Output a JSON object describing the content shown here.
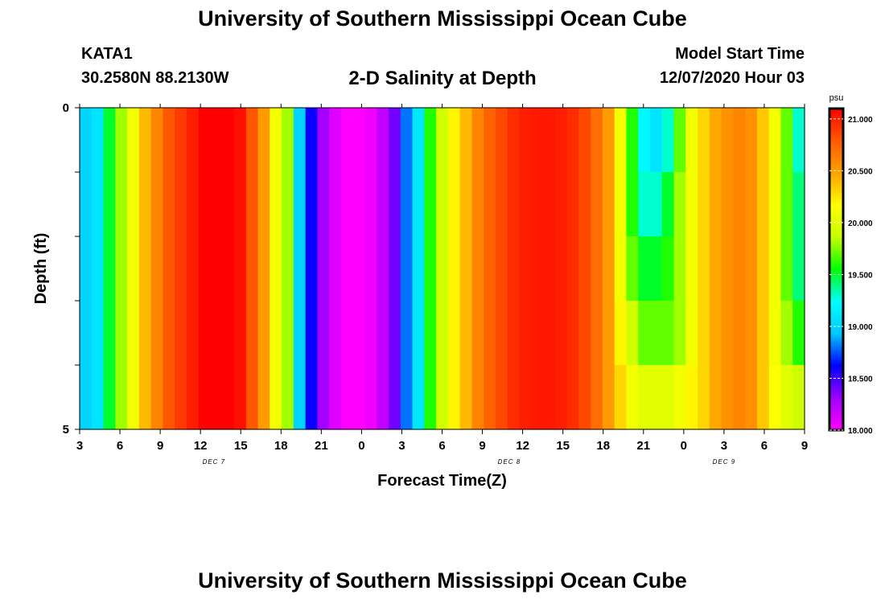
{
  "header": {
    "title": "University of Southern Mississippi Ocean Cube",
    "station_id": "KATA1",
    "coordinates": "30.2580N 88.2130W",
    "plot_title": "2-D Salinity at Depth",
    "start_label": "Model Start Time",
    "start_value": "12/07/2020 Hour 03"
  },
  "footer": {
    "title": "University of Southern Mississippi Ocean Cube"
  },
  "chart_data": {
    "type": "heatmap",
    "xlabel": "Forecast Time(Z)",
    "ylabel": "Depth (ft)",
    "x_tick_labels": [
      "3",
      "6",
      "9",
      "12",
      "15",
      "18",
      "21",
      "0",
      "3",
      "6",
      "9",
      "12",
      "15",
      "18",
      "21",
      "0",
      "3",
      "6",
      "9"
    ],
    "y_tick_labels": [
      "0",
      "5"
    ],
    "ylim": [
      0,
      5
    ],
    "date_labels": [
      {
        "text": "DEC 7",
        "hour_index": 10
      },
      {
        "text": "DEC 8",
        "hour_index": 32
      },
      {
        "text": "DEC 9",
        "hour_index": 48
      }
    ],
    "x_hours_per_tick": 3,
    "depth_rows": 5,
    "colorbar": {
      "unit": "psu",
      "min": 18.0,
      "max": 21.1,
      "tick_labels": [
        "18.000",
        "18.500",
        "19.000",
        "19.500",
        "20.000",
        "20.500",
        "21.000"
      ],
      "colors": [
        "#ff00ff",
        "#a000ff",
        "#0000ff",
        "#00c8ff",
        "#00ffff",
        "#00ff00",
        "#c8ff00",
        "#ffff00",
        "#ffa000",
        "#ff5a00",
        "#ff0000"
      ]
    },
    "salinity_psu": [
      [
        19.0,
        19.1,
        19.5,
        19.8,
        20.1,
        20.4,
        20.6,
        20.8,
        20.9,
        21.0,
        21.1,
        21.2,
        21.15,
        21.05,
        20.8,
        20.5,
        20.1,
        19.8,
        19.0,
        18.6,
        18.3,
        18.1,
        18.0,
        18.0,
        18.05,
        18.2,
        18.4,
        18.8,
        19.1,
        19.6,
        19.9,
        20.2,
        20.4,
        20.6,
        20.75,
        20.85,
        20.95,
        21.0,
        21.02,
        21.02,
        21.0,
        20.95,
        20.85,
        20.7,
        20.5,
        20.1,
        19.6,
        19.2,
        19.1,
        19.3,
        19.7,
        20.1,
        20.3,
        20.45,
        20.55,
        20.6,
        20.55,
        20.35,
        20.1,
        19.7,
        19.3
      ],
      [
        19.0,
        19.1,
        19.5,
        19.8,
        20.1,
        20.4,
        20.6,
        20.8,
        20.9,
        21.0,
        21.1,
        21.2,
        21.15,
        21.05,
        20.8,
        20.5,
        20.1,
        19.8,
        19.0,
        18.6,
        18.3,
        18.1,
        18.0,
        18.0,
        18.05,
        18.2,
        18.4,
        18.8,
        19.1,
        19.6,
        19.9,
        20.2,
        20.4,
        20.6,
        20.75,
        20.85,
        20.95,
        21.0,
        21.02,
        21.02,
        21.0,
        20.95,
        20.85,
        20.7,
        20.5,
        20.1,
        19.6,
        19.3,
        19.3,
        19.5,
        19.8,
        20.1,
        20.3,
        20.45,
        20.55,
        20.6,
        20.55,
        20.35,
        20.1,
        19.7,
        19.4
      ],
      [
        19.0,
        19.1,
        19.5,
        19.8,
        20.1,
        20.4,
        20.6,
        20.8,
        20.9,
        21.0,
        21.1,
        21.2,
        21.15,
        21.05,
        20.8,
        20.5,
        20.1,
        19.8,
        19.0,
        18.6,
        18.3,
        18.1,
        18.0,
        18.0,
        18.05,
        18.2,
        18.4,
        18.8,
        19.1,
        19.6,
        19.9,
        20.2,
        20.4,
        20.6,
        20.75,
        20.85,
        20.95,
        21.0,
        21.02,
        21.02,
        21.0,
        20.95,
        20.85,
        20.7,
        20.5,
        20.1,
        19.7,
        19.5,
        19.5,
        19.6,
        19.8,
        20.1,
        20.3,
        20.45,
        20.55,
        20.6,
        20.55,
        20.35,
        20.1,
        19.7,
        19.4
      ],
      [
        19.0,
        19.1,
        19.5,
        19.8,
        20.1,
        20.4,
        20.6,
        20.8,
        20.9,
        21.0,
        21.1,
        21.2,
        21.15,
        21.05,
        20.8,
        20.5,
        20.1,
        19.8,
        19.0,
        18.6,
        18.3,
        18.1,
        18.0,
        18.0,
        18.05,
        18.2,
        18.4,
        18.8,
        19.1,
        19.6,
        19.9,
        20.2,
        20.4,
        20.6,
        20.75,
        20.85,
        20.95,
        21.0,
        21.02,
        21.02,
        21.0,
        20.95,
        20.85,
        20.7,
        20.5,
        20.2,
        19.9,
        19.7,
        19.7,
        19.7,
        19.8,
        20.1,
        20.3,
        20.45,
        20.55,
        20.6,
        20.55,
        20.35,
        20.1,
        19.8,
        19.6
      ],
      [
        19.0,
        19.1,
        19.5,
        19.8,
        20.1,
        20.4,
        20.6,
        20.8,
        20.9,
        21.0,
        21.1,
        21.2,
        21.15,
        21.05,
        20.8,
        20.5,
        20.1,
        19.8,
        19.0,
        18.6,
        18.3,
        18.1,
        18.0,
        18.0,
        18.05,
        18.2,
        18.4,
        18.8,
        19.1,
        19.6,
        19.9,
        20.2,
        20.4,
        20.6,
        20.75,
        20.85,
        20.95,
        21.0,
        21.02,
        21.02,
        21.0,
        20.95,
        20.85,
        20.7,
        20.5,
        20.3,
        20.1,
        20.0,
        20.0,
        20.0,
        20.1,
        20.2,
        20.3,
        20.45,
        20.55,
        20.6,
        20.55,
        20.35,
        20.15,
        20.0,
        19.9
      ]
    ]
  }
}
